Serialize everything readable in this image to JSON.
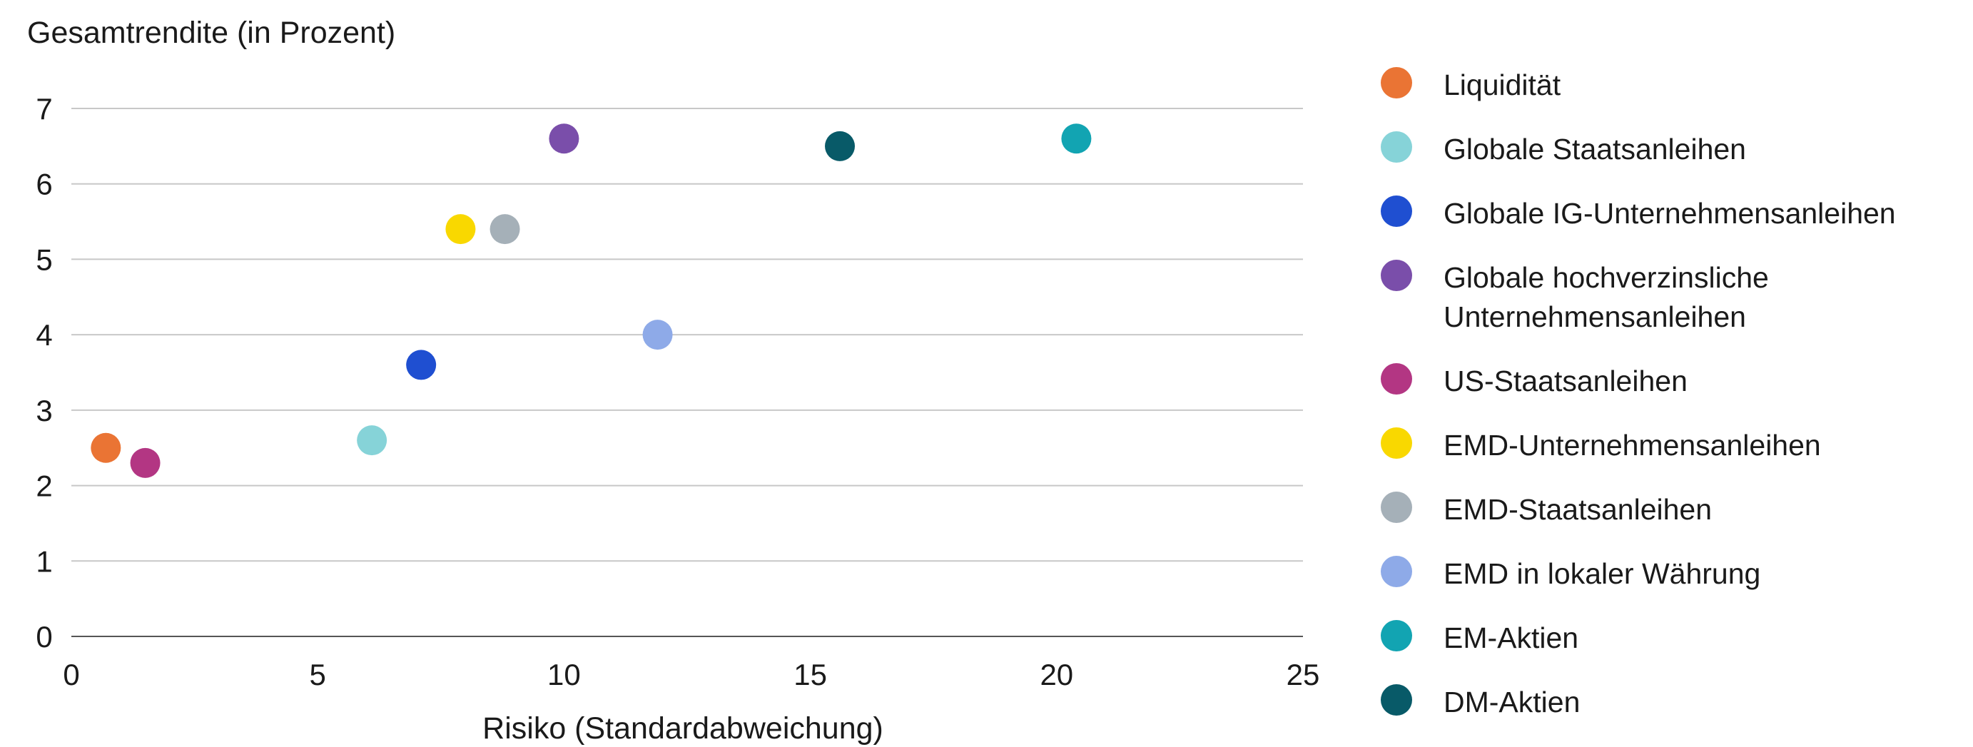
{
  "chart_data": {
    "type": "scatter",
    "title": "Gesamtrendite (in Prozent)",
    "xlabel": "Risiko (Standardabweichung)",
    "ylabel": "Gesamtrendite (in Prozent)",
    "xlim": [
      0,
      25
    ],
    "ylim": [
      0,
      7
    ],
    "xticks": [
      "0",
      "5",
      "10",
      "15",
      "20",
      "25"
    ],
    "yticks": [
      "0",
      "1",
      "2",
      "3",
      "4",
      "5",
      "6",
      "7"
    ],
    "grid": "horizontal",
    "legend_position": "right",
    "series": [
      {
        "name": "Liquidität",
        "color": "#ea7434",
        "x": 0.7,
        "y": 2.5
      },
      {
        "name": "Globale Staatsanleihen",
        "color": "#86d3d8",
        "x": 6.1,
        "y": 2.6
      },
      {
        "name": "Globale IG-Unternehmensanleihen",
        "color": "#1f4fd1",
        "x": 7.1,
        "y": 3.6
      },
      {
        "name": "Globale hochverzinsliche Unternehmensanleihen",
        "color": "#7a4eaa",
        "x": 10.0,
        "y": 6.6
      },
      {
        "name": "US-Staatsanleihen",
        "color": "#b33683",
        "x": 1.5,
        "y": 2.3
      },
      {
        "name": "EMD-Unternehmensanleihen",
        "color": "#f9d800",
        "x": 7.9,
        "y": 5.4
      },
      {
        "name": "EMD-Staatsanleihen",
        "color": "#a5b0b8",
        "x": 8.8,
        "y": 5.4
      },
      {
        "name": "EMD in lokaler Währung",
        "color": "#8eaae8",
        "x": 11.9,
        "y": 4.0
      },
      {
        "name": "EM-Aktien",
        "color": "#12a4b2",
        "x": 20.4,
        "y": 6.6
      },
      {
        "name": "DM-Aktien",
        "color": "#085a68",
        "x": 15.6,
        "y": 6.5
      }
    ]
  }
}
